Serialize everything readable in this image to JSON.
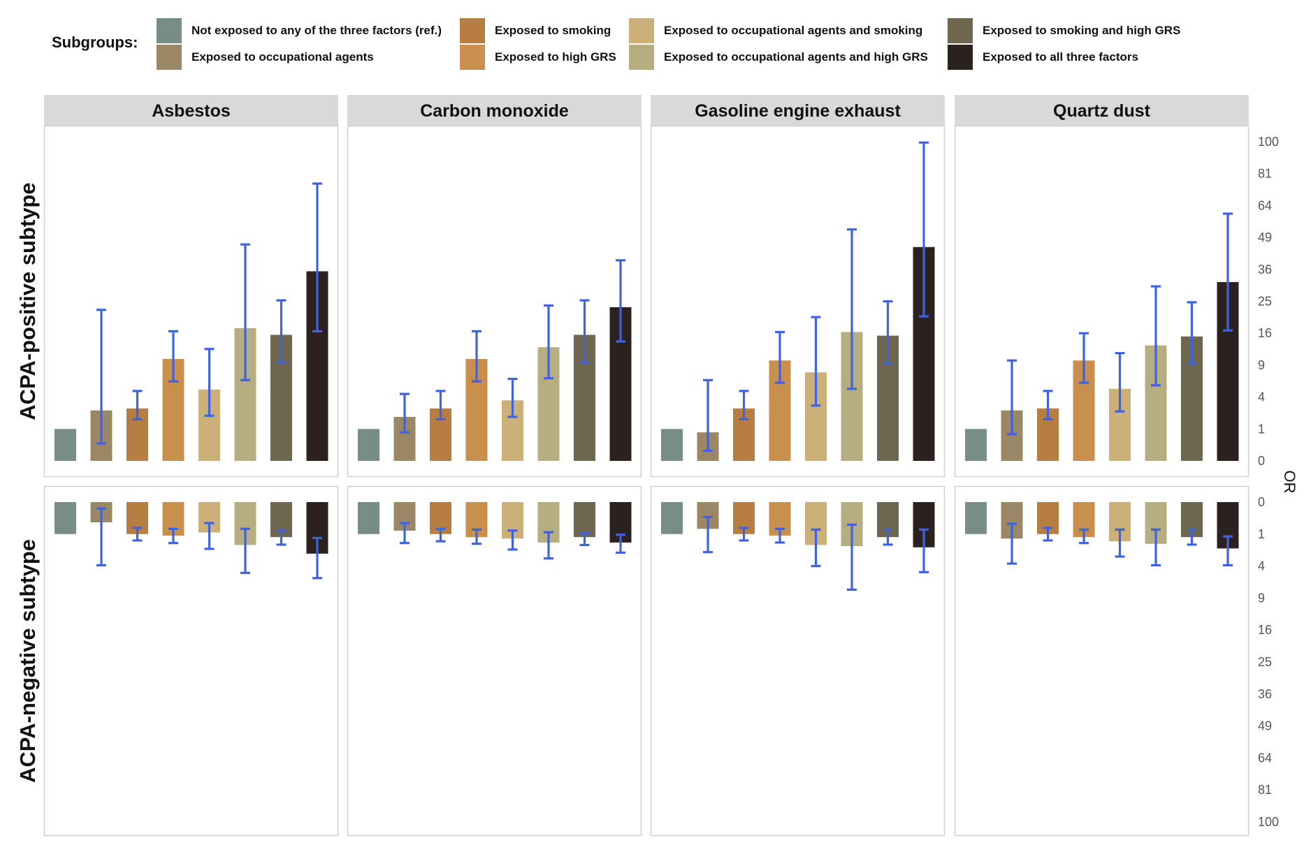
{
  "chart_data": {
    "type": "bar",
    "scale": "sqrt",
    "ylabel": "OR",
    "yticks": [
      0,
      1,
      4,
      9,
      16,
      25,
      36,
      49,
      64,
      81,
      100
    ],
    "ylim": [
      0,
      100
    ],
    "legend_title": "Subgroups:",
    "legend_placement": "top",
    "grid": false,
    "categories": [
      "Not exposed to any of the three factors (ref.)",
      "Exposed to occupational agents",
      "Exposed to smoking",
      "Exposed to high GRS",
      "Exposed to occupational agents and smoking",
      "Exposed to occupational agents and high GRS",
      "Exposed to smoking and high GRS",
      "Exposed to all three factors"
    ],
    "colors": [
      "#788d84",
      "#9a8766",
      "#b77e43",
      "#c98f4d",
      "#ccb07a",
      "#b6ad80",
      "#6e664e",
      "#2b211f"
    ],
    "error_bar_color": "#3f63e0",
    "columns": [
      "Asbestos",
      "Carbon monoxide",
      "Gasoline engine exhaust",
      "Quartz dust"
    ],
    "rows": [
      {
        "label": "ACPA-positive subtype",
        "direction": "up",
        "panels": [
          {
            "agent": "Asbestos",
            "or": [
              1.0,
              2.5,
              2.7,
              10.2,
              5.0,
              17.3,
              15.6,
              35.3
            ],
            "ci_low": [
              null,
              0.3,
              1.7,
              6.2,
              2.0,
              6.4,
              9.5,
              16.5
            ],
            "ci_high": [
              null,
              22.4,
              4.8,
              16.5,
              12.3,
              46.0,
              25.3,
              75.5
            ]
          },
          {
            "agent": "Carbon monoxide",
            "or": [
              1.0,
              1.9,
              2.7,
              10.2,
              3.6,
              12.7,
              15.6,
              23.2
            ],
            "ci_low": [
              null,
              0.8,
              1.7,
              6.2,
              1.9,
              6.7,
              9.5,
              14.0
            ],
            "ci_high": [
              null,
              4.4,
              4.8,
              16.5,
              6.6,
              23.7,
              25.3,
              39.5
            ]
          },
          {
            "agent": "Gasoline engine exhaust",
            "or": [
              1.0,
              0.8,
              2.7,
              9.9,
              7.7,
              16.3,
              15.4,
              44.9
            ],
            "ci_low": [
              null,
              0.1,
              1.7,
              6.0,
              3.0,
              5.1,
              9.3,
              20.5
            ],
            "ci_high": [
              null,
              6.4,
              4.8,
              16.3,
              20.3,
              52.6,
              25.0,
              99.5
            ]
          },
          {
            "agent": "Quartz dust",
            "or": [
              1.0,
              2.5,
              2.7,
              9.9,
              5.1,
              13.1,
              15.2,
              31.4
            ],
            "ci_low": [
              null,
              0.7,
              1.7,
              6.0,
              2.4,
              5.6,
              9.3,
              16.7
            ],
            "ci_high": [
              null,
              9.9,
              4.8,
              16.0,
              11.4,
              29.9,
              24.7,
              60.0
            ]
          }
        ]
      },
      {
        "label": "ACPA-negative subtype",
        "direction": "down",
        "panels": [
          {
            "agent": "Asbestos",
            "or": [
              1.0,
              0.4,
              1.0,
              1.1,
              0.9,
              1.8,
              1.2,
              2.6
            ],
            "ci_low": [
              null,
              0.04,
              0.65,
              0.7,
              0.43,
              0.7,
              0.79,
              1.26
            ],
            "ci_high": [
              null,
              3.9,
              1.44,
              1.64,
              2.14,
              4.9,
              1.77,
              5.65
            ]
          },
          {
            "agent": "Carbon monoxide",
            "or": [
              1.0,
              0.8,
              1.0,
              1.2,
              1.3,
              1.6,
              1.2,
              1.6
            ],
            "ci_low": [
              null,
              0.43,
              0.7,
              0.74,
              0.79,
              0.89,
              0.94,
              1.04
            ],
            "ci_high": [
              null,
              1.64,
              1.5,
              1.7,
              2.2,
              3.1,
              1.8,
              2.5
            ]
          },
          {
            "agent": "Gasoline engine exhaust",
            "or": [
              1.0,
              0.7,
              1.0,
              1.1,
              1.8,
              1.9,
              1.2,
              2.0
            ],
            "ci_low": [
              null,
              0.22,
              0.65,
              0.7,
              0.74,
              0.5,
              0.74,
              0.74
            ],
            "ci_high": [
              null,
              2.45,
              1.44,
              1.6,
              4.0,
              7.5,
              1.77,
              4.8
            ]
          },
          {
            "agent": "Quartz dust",
            "or": [
              1.0,
              1.3,
              1.0,
              1.2,
              1.5,
              1.7,
              1.2,
              2.1
            ],
            "ci_low": [
              null,
              0.46,
              0.65,
              0.74,
              0.74,
              0.74,
              0.74,
              1.15
            ],
            "ci_high": [
              null,
              3.7,
              1.44,
              1.64,
              2.9,
              3.9,
              1.77,
              3.9
            ]
          }
        ]
      }
    ]
  }
}
